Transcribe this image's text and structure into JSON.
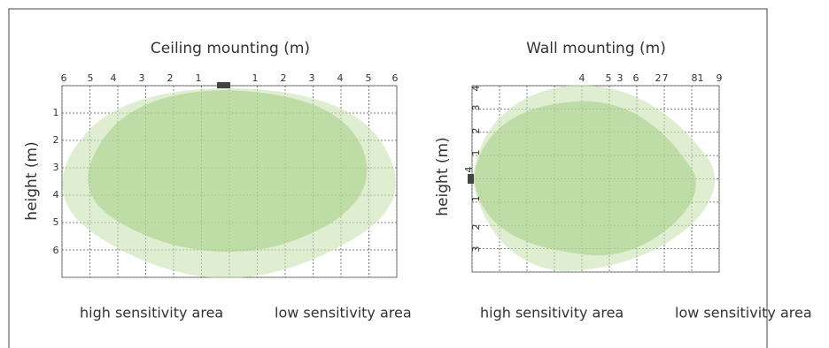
{
  "ceiling": {
    "title": "Ceiling mounting (m)",
    "top_ticks": [
      "6",
      "5",
      "4",
      "3",
      "2",
      "1",
      "1",
      "2",
      "3",
      "4",
      "5",
      "6"
    ],
    "side_ticks": [
      "1",
      "2",
      "3",
      "4",
      "5",
      "6"
    ],
    "y_label": "height (m)",
    "legend": [
      "high sensitivity area",
      "low sensitivity area"
    ]
  },
  "wall": {
    "title": "Wall mounting (m)",
    "top_ticks": [
      "4",
      "5",
      "3",
      "6",
      "2",
      "7",
      "8",
      "1",
      "9"
    ],
    "side_ticks": [
      "4",
      "3",
      "2",
      "1",
      "4",
      "1",
      "2",
      "3"
    ],
    "y_label": "height (m)",
    "legend": [
      "high sensitivity area",
      "low sensitivity area"
    ]
  }
}
